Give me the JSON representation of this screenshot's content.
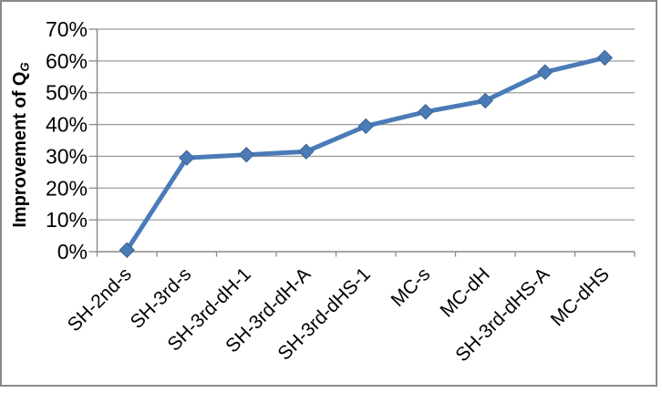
{
  "chart_data": {
    "type": "line",
    "title": "",
    "ylabel_main": "Improvement of Q",
    "ylabel_sub": "G",
    "xlabel": "",
    "categories": [
      "SH-2nd-s",
      "SH-3rd-s",
      "SH-3rd-dH-1",
      "SH-3rd-dH-A",
      "SH-3rd-dHS-1",
      "MC-s",
      "MC-dH",
      "SH-3rd-dHS-A",
      "MC-dHS"
    ],
    "values": [
      0.5,
      29.5,
      30.5,
      31.5,
      39.5,
      44,
      47.5,
      56.5,
      61
    ],
    "unit": "%",
    "y_tick_labels": [
      "0%",
      "10%",
      "20%",
      "30%",
      "40%",
      "50%",
      "60%",
      "70%"
    ],
    "ylim": [
      0,
      70
    ],
    "y_tick_step": 10,
    "grid": true,
    "legend": "none",
    "marker": "diamond",
    "colors": {
      "line": "#4a7bb7",
      "marker_fill": "#4a7bb7",
      "marker_border": "#3b628f",
      "gridline": "#9e9e9e",
      "axis": "#8a8a8a",
      "tick": "#8a8a8a",
      "text": "#000000",
      "frame_border": "#8a8a8a",
      "background": "#ffffff"
    }
  }
}
